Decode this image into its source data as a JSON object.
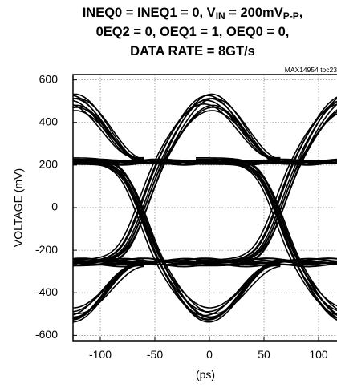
{
  "title": {
    "line1_prefix": "INEQ0 = INEQ1 = 0, V",
    "line1_sub1": "IN",
    "line1_mid": " = 200mV",
    "line1_sub2": "P-P",
    "line1_suffix": ",",
    "line2": "0EQ2 = 0, OEQ1 = 1, OEQ0 = 0,",
    "line3": "DATA RATE = 8GT/s"
  },
  "figure_tag": "MAX14954 toc23",
  "chart_data": {
    "type": "line",
    "title": "INEQ0 = INEQ1 = 0, VIN = 200mVP-P, 0EQ2 = 0, OEQ1 = 1, OEQ0 = 0, DATA RATE = 8GT/s",
    "xlabel": "(ps)",
    "ylabel": "VOLTAGE (mV)",
    "xlim": [
      -125,
      125
    ],
    "ylim": [
      -625,
      625
    ],
    "x_ticks": [
      -100,
      -50,
      0,
      50,
      100
    ],
    "x_tick_labels": [
      "-100",
      "-50",
      "0",
      "50",
      "100"
    ],
    "y_ticks": [
      -600,
      -400,
      -200,
      0,
      200,
      400,
      600
    ],
    "y_tick_labels": [
      "-600",
      "-400",
      "-200",
      "0",
      "200",
      "400",
      "600"
    ],
    "grid": true,
    "eye_pattern": {
      "unit_interval_ps": 125,
      "crossing_points_ps": [
        -62.5,
        62.5
      ],
      "high_level_mV": 220,
      "low_level_mV": -260,
      "overshoot_peak_mV": 500,
      "undershoot_peak_mV": -500
    }
  }
}
